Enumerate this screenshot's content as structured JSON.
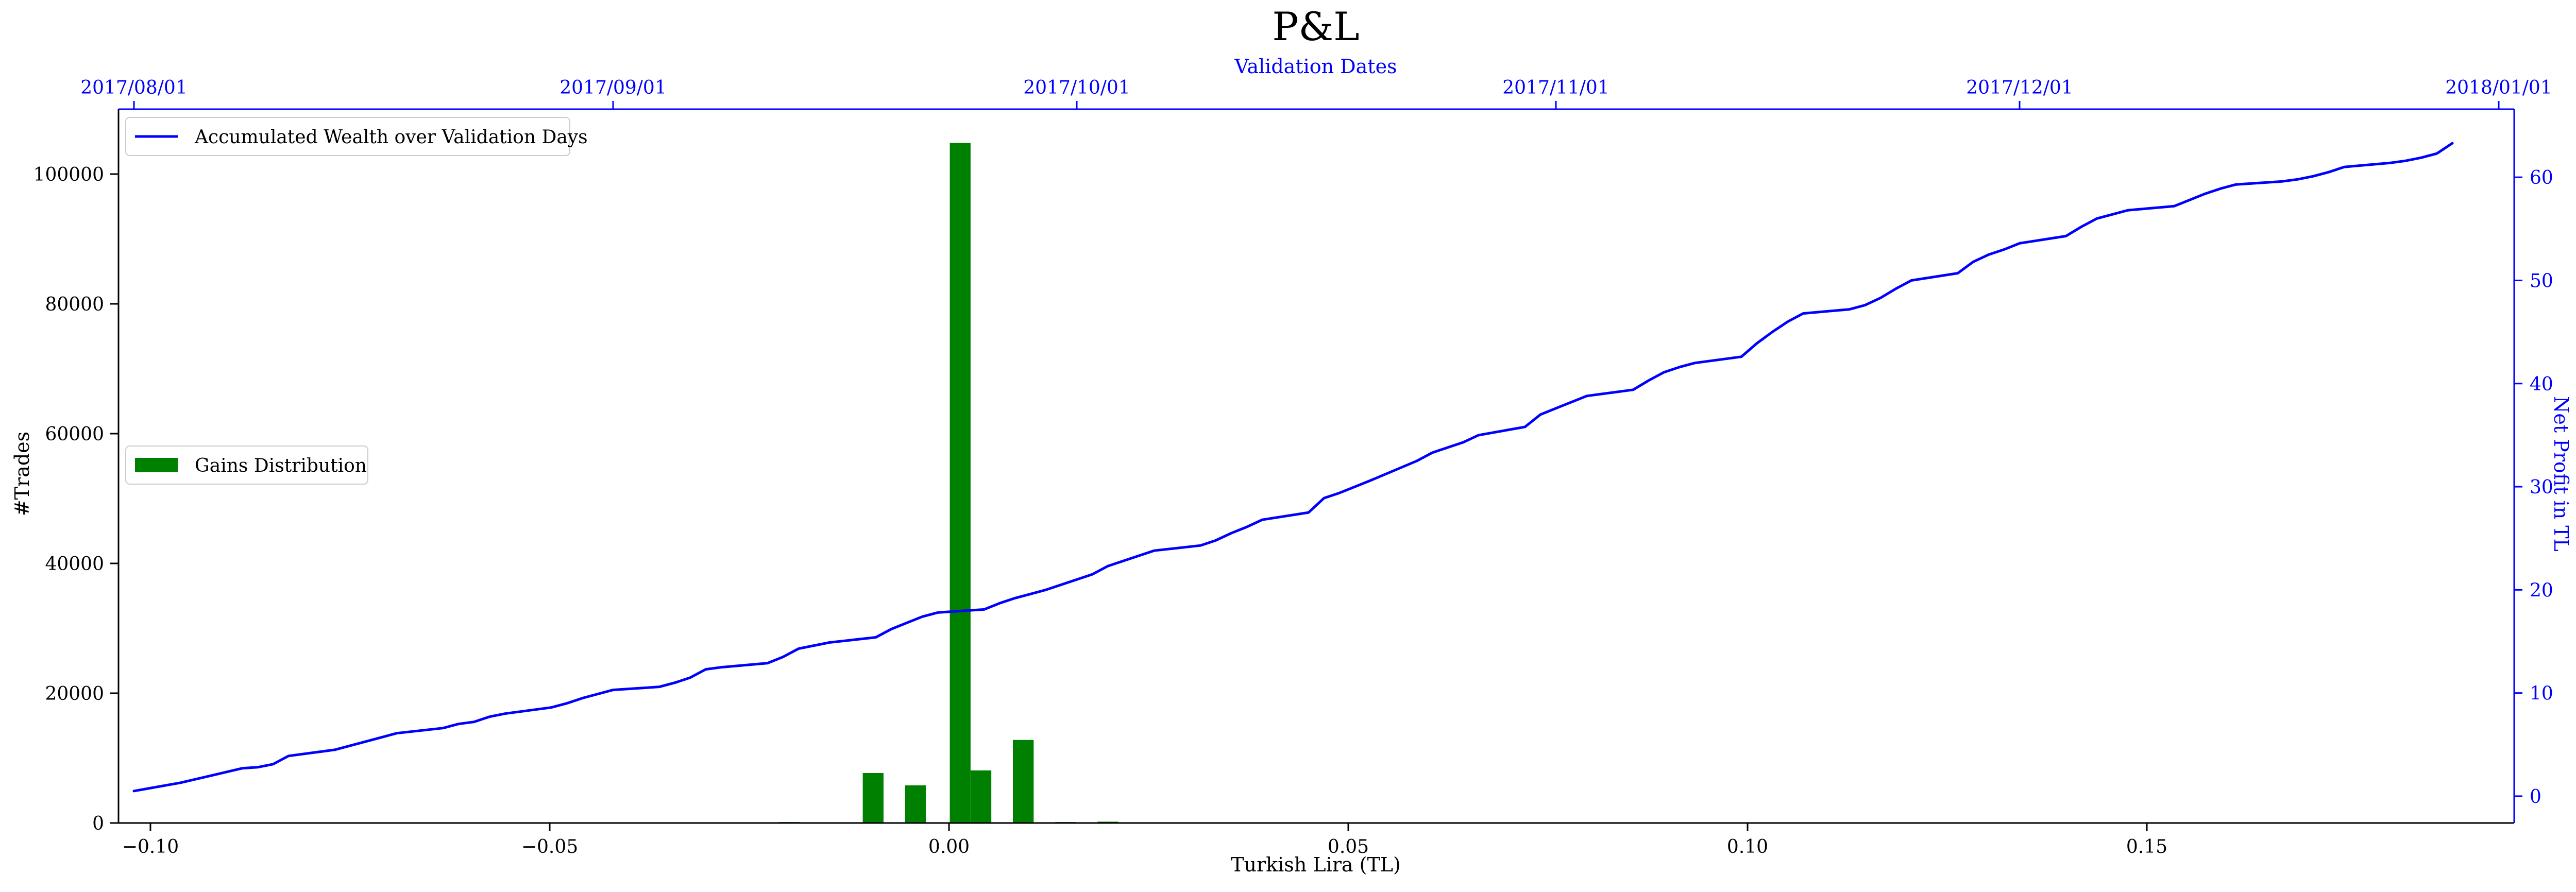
{
  "chart_data": {
    "type": "bar+line",
    "title": "P&L",
    "x_bottom": {
      "label": "Turkish Lira (TL)",
      "range": [
        -0.104,
        0.196
      ],
      "ticks": [
        -0.1,
        -0.05,
        0.0,
        0.05,
        0.1,
        0.15
      ],
      "tick_labels": [
        "−0.10",
        "−0.05",
        "0.00",
        "0.05",
        "0.10",
        "0.15"
      ]
    },
    "y_left": {
      "label": "#Trades",
      "range": [
        0,
        110000
      ],
      "ticks": [
        0,
        20000,
        40000,
        60000,
        80000,
        100000
      ],
      "tick_labels": [
        "0",
        "20000",
        "40000",
        "60000",
        "80000",
        "100000"
      ]
    },
    "x_top": {
      "label": "Validation Dates",
      "range": [
        "2017-07-31",
        "2018-01-02"
      ],
      "ticks": [
        "2017-08-01",
        "2017-09-01",
        "2017-10-01",
        "2017-11-01",
        "2017-12-01",
        "2018-01-01"
      ],
      "tick_labels": [
        "2017/08/01",
        "2017/09/01",
        "2017/10/01",
        "2017/11/01",
        "2017/12/01",
        "2018/01/01"
      ]
    },
    "y_right": {
      "label": "Net Profit in TL",
      "range": [
        -2.6,
        66.6
      ],
      "ticks": [
        0,
        10,
        20,
        30,
        40,
        50,
        60
      ],
      "tick_labels": [
        "0",
        "10",
        "20",
        "30",
        "40",
        "50",
        "60"
      ]
    },
    "legend": [
      {
        "label": "Accumulated Wealth over Validation Days",
        "placement": "upper-left"
      },
      {
        "label": "Gains Distribution",
        "placement": "center-left"
      }
    ],
    "bars": {
      "name": "Gains Distribution",
      "color": "#008000",
      "width": 0.0026,
      "x": [
        -0.02,
        -0.015,
        -0.0095,
        -0.0042,
        0.0014,
        0.004,
        0.0093,
        0.0146,
        0.0199
      ],
      "values": [
        150,
        100,
        7700,
        5800,
        104800,
        8100,
        12800,
        150,
        200
      ]
    },
    "line": {
      "name": "Accumulated Wealth over Validation Days",
      "color": "#0000ff",
      "dates": [
        "2017-08-01",
        "2017-08-04",
        "2017-08-06",
        "2017-08-08",
        "2017-08-09",
        "2017-08-10",
        "2017-08-11",
        "2017-08-14",
        "2017-08-15",
        "2017-08-16",
        "2017-08-17",
        "2017-08-18",
        "2017-08-21",
        "2017-08-22",
        "2017-08-23",
        "2017-08-24",
        "2017-08-25",
        "2017-08-28",
        "2017-08-29",
        "2017-08-30",
        "2017-09-01",
        "2017-09-04",
        "2017-09-05",
        "2017-09-06",
        "2017-09-07",
        "2017-09-08",
        "2017-09-11",
        "2017-09-12",
        "2017-09-13",
        "2017-09-14",
        "2017-09-15",
        "2017-09-18",
        "2017-09-19",
        "2017-09-20",
        "2017-09-21",
        "2017-09-22",
        "2017-09-25",
        "2017-09-26",
        "2017-09-27",
        "2017-09-28",
        "2017-09-29",
        "2017-10-02",
        "2017-10-03",
        "2017-10-04",
        "2017-10-05",
        "2017-10-06",
        "2017-10-09",
        "2017-10-10",
        "2017-10-11",
        "2017-10-12",
        "2017-10-13",
        "2017-10-16",
        "2017-10-17",
        "2017-10-18",
        "2017-10-19",
        "2017-10-20",
        "2017-10-23",
        "2017-10-24",
        "2017-10-25",
        "2017-10-26",
        "2017-10-27",
        "2017-10-30",
        "2017-10-31",
        "2017-11-01",
        "2017-11-02",
        "2017-11-03",
        "2017-11-06",
        "2017-11-07",
        "2017-11-08",
        "2017-11-09",
        "2017-11-10",
        "2017-11-13",
        "2017-11-14",
        "2017-11-15",
        "2017-11-16",
        "2017-11-17",
        "2017-11-20",
        "2017-11-21",
        "2017-11-22",
        "2017-11-23",
        "2017-11-24",
        "2017-11-27",
        "2017-11-28",
        "2017-11-29",
        "2017-11-30",
        "2017-12-01",
        "2017-12-04",
        "2017-12-05",
        "2017-12-06",
        "2017-12-07",
        "2017-12-08",
        "2017-12-11",
        "2017-12-12",
        "2017-12-13",
        "2017-12-14",
        "2017-12-15",
        "2017-12-18",
        "2017-12-19",
        "2017-12-20",
        "2017-12-21",
        "2017-12-22",
        "2017-12-25",
        "2017-12-26",
        "2017-12-27",
        "2017-12-28",
        "2017-12-29"
      ],
      "values": [
        0.5,
        1.3,
        2.0,
        2.7,
        2.8,
        3.1,
        3.9,
        4.5,
        4.9,
        5.3,
        5.7,
        6.1,
        6.6,
        7.0,
        7.2,
        7.7,
        8.0,
        8.6,
        9.0,
        9.5,
        10.3,
        10.6,
        11.0,
        11.5,
        12.3,
        12.5,
        12.9,
        13.5,
        14.3,
        14.6,
        14.9,
        15.4,
        16.2,
        16.8,
        17.4,
        17.8,
        18.1,
        18.7,
        19.2,
        19.6,
        20.0,
        21.5,
        22.3,
        22.8,
        23.3,
        23.8,
        24.3,
        24.8,
        25.5,
        26.1,
        26.8,
        27.5,
        28.9,
        29.4,
        30.0,
        30.6,
        32.5,
        33.3,
        33.8,
        34.3,
        35.0,
        35.8,
        37.0,
        37.6,
        38.2,
        38.8,
        39.4,
        40.3,
        41.1,
        41.6,
        42.0,
        42.6,
        43.9,
        45.0,
        46.0,
        46.8,
        47.2,
        47.6,
        48.3,
        49.2,
        50.0,
        50.7,
        51.8,
        52.5,
        53.0,
        53.6,
        54.3,
        55.2,
        56.0,
        56.4,
        56.8,
        57.2,
        57.8,
        58.4,
        58.9,
        59.3,
        59.6,
        59.8,
        60.1,
        60.5,
        61.0,
        61.4,
        61.6,
        61.9,
        62.3,
        63.3
      ]
    }
  }
}
